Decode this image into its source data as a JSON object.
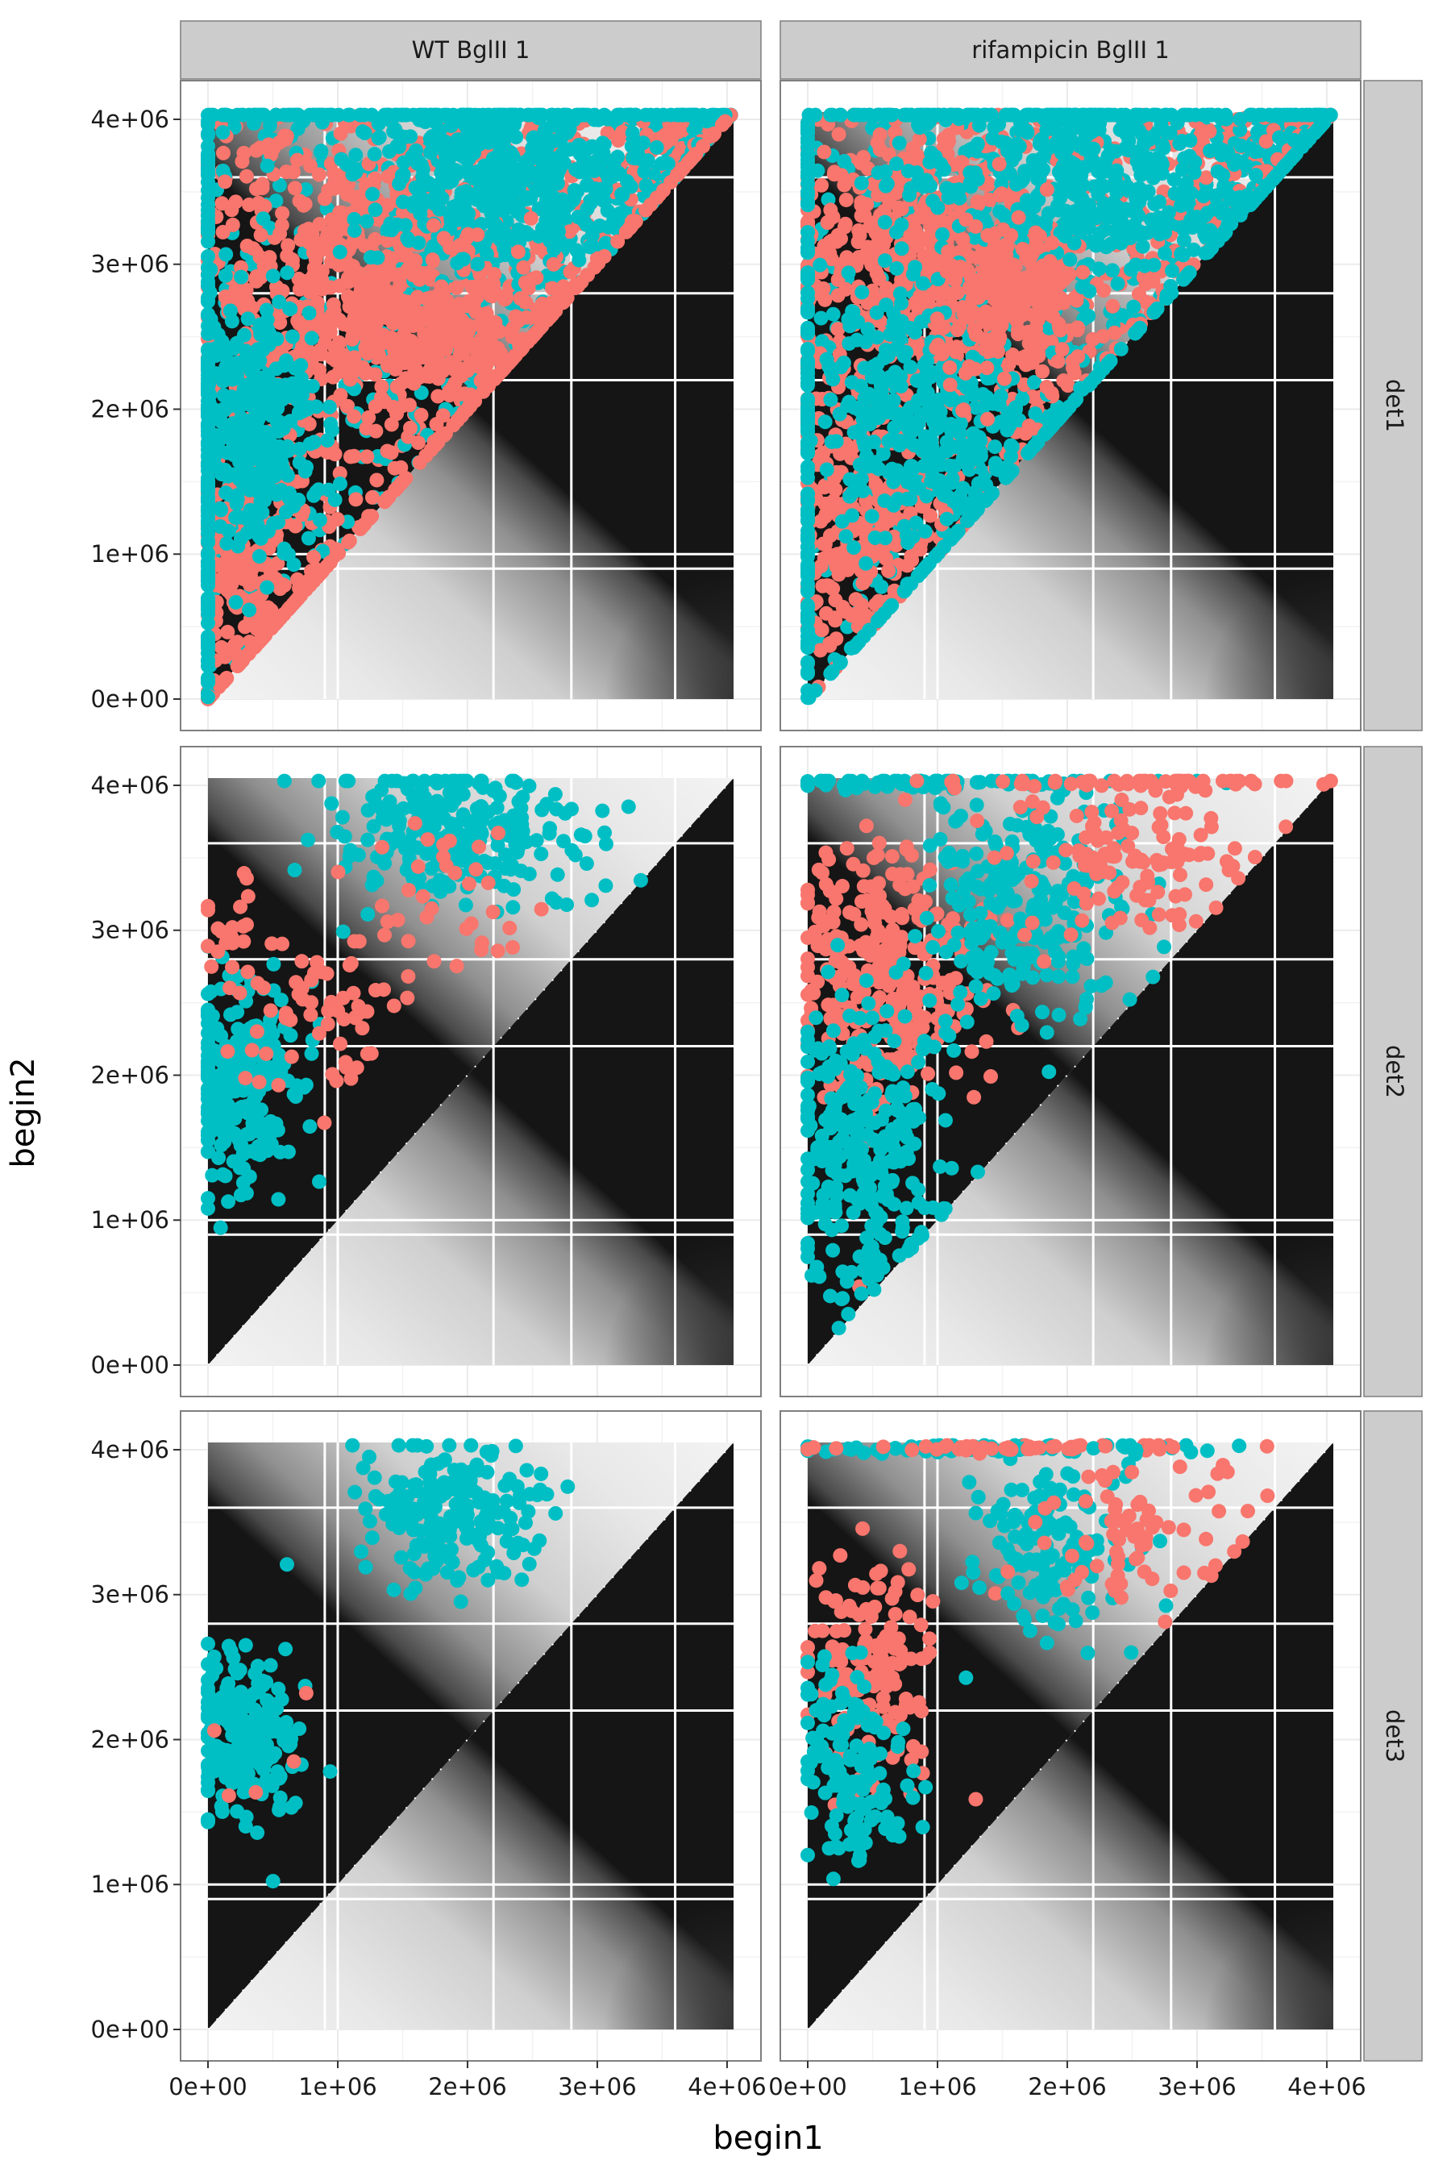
{
  "chart_data": {
    "type": "scatter",
    "xlabel": "begin1",
    "ylabel": "begin2",
    "xlim": [
      0,
      4050000
    ],
    "ylim": [
      0,
      4050000
    ],
    "x_ticks": [
      {
        "value": 0,
        "label": "0e+00"
      },
      {
        "value": 1000000,
        "label": "1e+06"
      },
      {
        "value": 2000000,
        "label": "2e+06"
      },
      {
        "value": 3000000,
        "label": "3e+06"
      },
      {
        "value": 4000000,
        "label": "4e+06"
      }
    ],
    "y_ticks": [
      {
        "value": 0,
        "label": "0e+00"
      },
      {
        "value": 1000000,
        "label": "1e+06"
      },
      {
        "value": 2000000,
        "label": "2e+06"
      },
      {
        "value": 3000000,
        "label": "3e+06"
      },
      {
        "value": 4000000,
        "label": "4e+06"
      }
    ],
    "columns": [
      "WT BglII 1",
      "rifampicin BglII 1"
    ],
    "rows": [
      "det1",
      "det2",
      "det3"
    ],
    "series_colors": [
      "#F8766D",
      "#00BFC4"
    ],
    "heatmap_background": "grayscale contact map, dark on diagonal, white lines at 0.9e+06, 1e+06, 2.2e+06, 2.8e+06, 3.6e+06",
    "panels": [
      {
        "column": "WT BglII 1",
        "row": "det1",
        "fill": "upper-triangle",
        "clusters": [
          {
            "color": "#F8766D",
            "cx": 1200000,
            "cy": 2900000,
            "sx": 600000,
            "sy": 500000,
            "n": 500
          },
          {
            "color": "#F8766D",
            "cx": 300000,
            "cy": 800000,
            "sx": 250000,
            "sy": 500000,
            "n": 200
          },
          {
            "color": "#00BFC4",
            "cx": 2300000,
            "cy": 3600000,
            "sx": 600000,
            "sy": 300000,
            "n": 450
          },
          {
            "color": "#00BFC4",
            "cx": 300000,
            "cy": 1900000,
            "sx": 250000,
            "sy": 450000,
            "n": 350
          },
          {
            "color": "#F8766D",
            "cx": 1900000,
            "cy": 2500000,
            "sx": 400000,
            "sy": 300000,
            "n": 200
          }
        ]
      },
      {
        "column": "rifampicin BglII 1",
        "row": "det1",
        "fill": "upper-triangle",
        "clusters": [
          {
            "color": "#F8766D",
            "cx": 800000,
            "cy": 3000000,
            "sx": 500000,
            "sy": 500000,
            "n": 450
          },
          {
            "color": "#F8766D",
            "cx": 400000,
            "cy": 1200000,
            "sx": 300000,
            "sy": 400000,
            "n": 200
          },
          {
            "color": "#00BFC4",
            "cx": 2000000,
            "cy": 3600000,
            "sx": 700000,
            "sy": 350000,
            "n": 400
          },
          {
            "color": "#00BFC4",
            "cx": 900000,
            "cy": 2000000,
            "sx": 400000,
            "sy": 450000,
            "n": 350
          },
          {
            "color": "#F8766D",
            "cx": 1600000,
            "cy": 2700000,
            "sx": 300000,
            "sy": 300000,
            "n": 200
          }
        ]
      },
      {
        "column": "WT BglII 1",
        "row": "det2",
        "fill": "clusters",
        "clusters": [
          {
            "color": "#00BFC4",
            "cx": 1900000,
            "cy": 3700000,
            "sx": 450000,
            "sy": 250000,
            "n": 260
          },
          {
            "color": "#00BFC4",
            "cx": 250000,
            "cy": 1900000,
            "sx": 220000,
            "sy": 350000,
            "n": 260
          },
          {
            "color": "#F8766D",
            "cx": 900000,
            "cy": 2400000,
            "sx": 350000,
            "sy": 300000,
            "n": 60
          },
          {
            "color": "#F8766D",
            "cx": 1900000,
            "cy": 3200000,
            "sx": 350000,
            "sy": 250000,
            "n": 35
          },
          {
            "color": "#F8766D",
            "cx": 200000,
            "cy": 2900000,
            "sx": 150000,
            "sy": 400000,
            "n": 25
          }
        ]
      },
      {
        "column": "rifampicin BglII 1",
        "row": "det2",
        "fill": "clusters",
        "clusters": [
          {
            "color": "#F8766D",
            "cx": 600000,
            "cy": 2700000,
            "sx": 350000,
            "sy": 450000,
            "n": 320
          },
          {
            "color": "#00BFC4",
            "cx": 400000,
            "cy": 1500000,
            "sx": 300000,
            "sy": 500000,
            "n": 300
          },
          {
            "color": "#00BFC4",
            "cx": 1700000,
            "cy": 3200000,
            "sx": 400000,
            "sy": 450000,
            "n": 260
          },
          {
            "color": "#F8766D",
            "cx": 2500000,
            "cy": 3500000,
            "sx": 450000,
            "sy": 300000,
            "n": 120
          },
          {
            "color": "#00BFC4",
            "cx": 900000,
            "cy": 4020000,
            "sx": 800000,
            "sy": 20000,
            "n": 80
          },
          {
            "color": "#F8766D",
            "cx": 2600000,
            "cy": 4020000,
            "sx": 700000,
            "sy": 20000,
            "n": 60
          }
        ]
      },
      {
        "column": "WT BglII 1",
        "row": "det3",
        "fill": "clusters",
        "clusters": [
          {
            "color": "#00BFC4",
            "cx": 1900000,
            "cy": 3600000,
            "sx": 380000,
            "sy": 230000,
            "n": 200
          },
          {
            "color": "#00BFC4",
            "cx": 280000,
            "cy": 1950000,
            "sx": 200000,
            "sy": 300000,
            "n": 200
          },
          {
            "color": "#F8766D",
            "cx": 450000,
            "cy": 1700000,
            "sx": 250000,
            "sy": 300000,
            "n": 5
          }
        ]
      },
      {
        "column": "rifampicin BglII 1",
        "row": "det3",
        "fill": "clusters",
        "clusters": [
          {
            "color": "#F8766D",
            "cx": 500000,
            "cy": 2500000,
            "sx": 250000,
            "sy": 400000,
            "n": 150
          },
          {
            "color": "#00BFC4",
            "cx": 350000,
            "cy": 1800000,
            "sx": 200000,
            "sy": 350000,
            "n": 140
          },
          {
            "color": "#00BFC4",
            "cx": 1900000,
            "cy": 3400000,
            "sx": 300000,
            "sy": 350000,
            "n": 150
          },
          {
            "color": "#F8766D",
            "cx": 2500000,
            "cy": 3500000,
            "sx": 350000,
            "sy": 300000,
            "n": 80
          },
          {
            "color": "#00BFC4",
            "cx": 1200000,
            "cy": 4010000,
            "sx": 900000,
            "sy": 15000,
            "n": 70
          },
          {
            "color": "#F8766D",
            "cx": 1600000,
            "cy": 4010000,
            "sx": 700000,
            "sy": 15000,
            "n": 40
          }
        ]
      }
    ]
  }
}
